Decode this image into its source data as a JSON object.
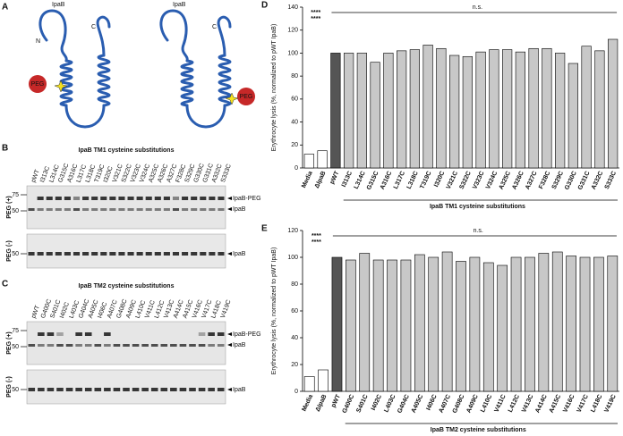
{
  "panels": {
    "a": {
      "letter": "A",
      "left": {
        "protein": "IpaB",
        "n": "N",
        "c": "C",
        "peg": "PEG"
      },
      "right": {
        "protein": "IpaB",
        "c": "C",
        "peg": "PEG"
      }
    },
    "b": {
      "letter": "B",
      "title": "IpaB TM1 cysteine substitutions",
      "lanes": [
        "pWT",
        "I313C",
        "L314C",
        "G315C",
        "A316C",
        "L317C",
        "L318C",
        "T319C",
        "I320C",
        "V321C",
        "S322C",
        "V323C",
        "V324C",
        "A325C",
        "A326C",
        "A327C",
        "F328C",
        "S329C",
        "G330C",
        "G331C",
        "A332C",
        "S333C"
      ],
      "peg_plus": "PEG (+)",
      "peg_minus": "PEG (-)",
      "markers_plus": [
        75,
        50
      ],
      "markers_minus": [
        50
      ],
      "band_labels_plus": [
        "IpaB-PEG",
        "IpaB"
      ],
      "band_label_minus": "IpaB"
    },
    "c": {
      "letter": "C",
      "title": "IpaB TM2 cysteine substitutions",
      "lanes": [
        "pWT",
        "G400C",
        "S401C",
        "I402C",
        "L403C",
        "G404C",
        "A405C",
        "I406C",
        "A407C",
        "G408C",
        "A409C",
        "L410C",
        "V411C",
        "L412C",
        "V413C",
        "A414C",
        "A415C",
        "V416C",
        "V417C",
        "L418C",
        "V419C"
      ],
      "peg_plus": "PEG (+)",
      "peg_minus": "PEG (-)",
      "markers_plus": [
        75,
        50
      ],
      "markers_minus": [
        50
      ],
      "band_labels_plus": [
        "IpaB-PEG",
        "IpaB"
      ],
      "band_label_minus": "IpaB"
    }
  },
  "chart_data": [
    {
      "type": "bar",
      "label": "D",
      "y_label": "Erythrocyte lysis (%, normalized to pWT IpaB)",
      "x_label": "IpaB TM1 cysteine substitutions",
      "categories": [
        "Media",
        "ΔIpaB",
        "pWT",
        "I313C",
        "L314C",
        "G315C",
        "A316C",
        "L317C",
        "L318C",
        "T319C",
        "I320C",
        "V321C",
        "S322C",
        "V323C",
        "V324C",
        "A325C",
        "A326C",
        "A327C",
        "F328C",
        "S329C",
        "G330C",
        "G331C",
        "A332C",
        "S333C"
      ],
      "values": [
        12,
        15,
        100,
        100,
        100,
        92,
        100,
        102,
        103,
        107,
        104,
        98,
        97,
        101,
        103,
        103,
        101,
        104,
        104,
        100,
        91,
        106,
        102,
        112
      ],
      "colors": [
        "#ffffff",
        "#ffffff",
        "#555555",
        "#c8c8c8",
        "#c8c8c8",
        "#c8c8c8",
        "#c8c8c8",
        "#c8c8c8",
        "#c8c8c8",
        "#c8c8c8",
        "#c8c8c8",
        "#c8c8c8",
        "#c8c8c8",
        "#c8c8c8",
        "#c8c8c8",
        "#c8c8c8",
        "#c8c8c8",
        "#c8c8c8",
        "#c8c8c8",
        "#c8c8c8",
        "#c8c8c8",
        "#c8c8c8",
        "#c8c8c8",
        "#c8c8c8"
      ],
      "ylim": [
        0,
        140
      ],
      "yticks": [
        0,
        20,
        40,
        60,
        80,
        100,
        120,
        140
      ],
      "annotations": [
        "****",
        "****",
        "n.s."
      ]
    },
    {
      "type": "bar",
      "label": "E",
      "y_label": "Erythrocyte lysis (%, normalized to pWT IpaB)",
      "x_label": "IpaB TM2 cysteine substitutions",
      "categories": [
        "Media",
        "ΔIpaB",
        "pWT",
        "G400C",
        "S401C",
        "I402C",
        "L403C",
        "G404C",
        "A405C",
        "I406C",
        "A407C",
        "G408C",
        "A409C",
        "L410C",
        "V411C",
        "L412C",
        "V413C",
        "A414C",
        "A415C",
        "V416C",
        "V417C",
        "L418C",
        "V419C"
      ],
      "values": [
        11,
        16,
        100,
        98,
        103,
        98,
        98,
        98,
        102,
        100,
        104,
        97,
        100,
        96,
        94,
        100,
        100,
        103,
        104,
        101,
        100,
        100,
        101
      ],
      "colors": [
        "#ffffff",
        "#ffffff",
        "#555555",
        "#c8c8c8",
        "#c8c8c8",
        "#c8c8c8",
        "#c8c8c8",
        "#c8c8c8",
        "#c8c8c8",
        "#c8c8c8",
        "#c8c8c8",
        "#c8c8c8",
        "#c8c8c8",
        "#c8c8c8",
        "#c8c8c8",
        "#c8c8c8",
        "#c8c8c8",
        "#c8c8c8",
        "#c8c8c8",
        "#c8c8c8",
        "#c8c8c8",
        "#c8c8c8",
        "#c8c8c8"
      ],
      "ylim": [
        0,
        120
      ],
      "yticks": [
        0,
        20,
        40,
        60,
        80,
        100,
        120
      ],
      "annotations": [
        "****",
        "****",
        "n.s."
      ]
    }
  ]
}
